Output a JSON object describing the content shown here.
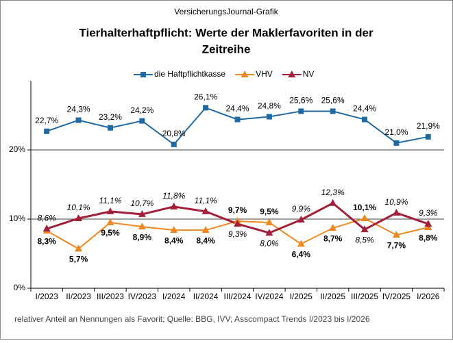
{
  "chart_data": {
    "type": "line",
    "source": "VersicherungsJournal-Grafik",
    "title": [
      "Tierhalterhaftpflicht: Werte der Maklerfavoriten  in der",
      "Zeitreihe"
    ],
    "note": "relativer  Anteil an Nennungen  als Favorit;  Quelle:  BBG, IVV; Asscompact Trends  I/2023  bis I/2026",
    "categories": [
      "I/2023",
      "II/2023",
      "III/2023",
      "IV/2023",
      "I/2024",
      "II/2024",
      "III/2024",
      "IV/2024",
      "I/2025",
      "II/2025",
      "III/2025",
      "IV/2025",
      "I/2026"
    ],
    "series": [
      {
        "name": "die Haftpflichtkasse",
        "color": "#1f6aa5",
        "marker": "square",
        "values": [
          22.7,
          24.3,
          23.2,
          24.2,
          20.8,
          26.1,
          24.4,
          24.8,
          25.6,
          25.6,
          24.4,
          21.0,
          21.9
        ],
        "value_labels": [
          "22,7%",
          "24,3%",
          "23,2%",
          "24,2%",
          "20,8%",
          "26,1%",
          "24,4%",
          "24,8%",
          "25,6%",
          "25,6%",
          "24,4%",
          "21,0%",
          "21,9%"
        ]
      },
      {
        "name": "VHV",
        "color": "#f0861e",
        "marker": "triangle",
        "values": [
          8.3,
          5.7,
          9.5,
          8.9,
          8.4,
          8.4,
          9.7,
          9.5,
          6.4,
          8.7,
          10.1,
          7.7,
          8.8
        ],
        "value_labels": [
          "8,3%",
          "5,7%",
          "9,5%",
          "8,9%",
          "8,4%",
          "8,4%",
          "9,7%",
          "9,5%",
          "6,4%",
          "8,7%",
          "10,1%",
          "7,7%",
          "8,8%"
        ]
      },
      {
        "name": "NV",
        "color": "#a3203a",
        "marker": "triangle",
        "values": [
          8.6,
          10.1,
          11.1,
          10.7,
          11.8,
          11.1,
          9.3,
          8.0,
          9.9,
          12.3,
          8.5,
          10.9,
          9.3
        ],
        "value_labels": [
          "8,6%",
          "10,1%",
          "11,1%",
          "10,7%",
          "11,8%",
          "11,1%",
          "9,3%",
          "8,0%",
          "9,9%",
          "12,3%",
          "8,5%",
          "10,9%",
          "9,3%"
        ]
      }
    ],
    "ylim": [
      0,
      30
    ],
    "yticks": [
      {
        "value": 0,
        "label": "0%"
      },
      {
        "value": 10,
        "label": "10%"
      },
      {
        "value": 20,
        "label": "20%"
      }
    ],
    "grid": true
  }
}
